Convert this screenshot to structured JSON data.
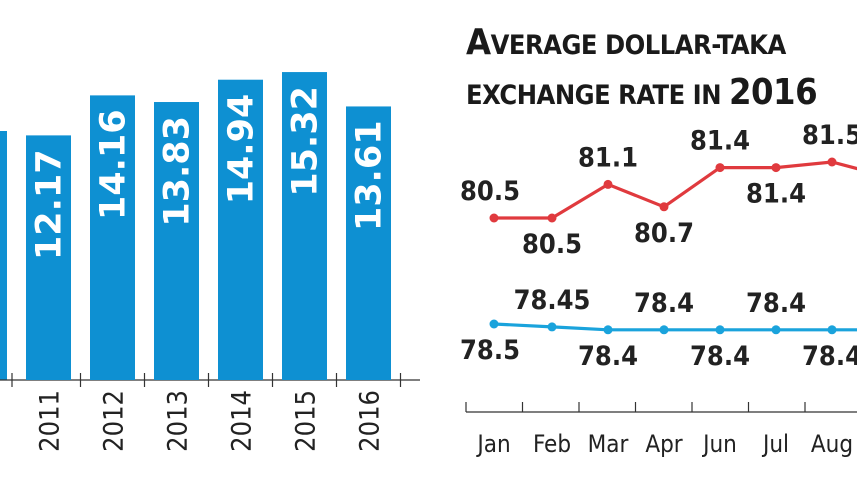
{
  "chart_data": [
    {
      "type": "bar",
      "categories": [
        "2011",
        "2012",
        "2013",
        "2014",
        "2015",
        "2016"
      ],
      "values": [
        12.17,
        14.16,
        13.83,
        14.94,
        15.32,
        13.61
      ],
      "labels": [
        "12.17",
        "14.16",
        "13.83",
        "14.94",
        "15.32",
        "13.61"
      ],
      "ylim": [
        0,
        17
      ],
      "color": "#0e90d2",
      "partial_left_bar": true
    },
    {
      "type": "line",
      "title_parts": [
        {
          "text": "A",
          "size": "big"
        },
        {
          "text": "VERAGE DOLLAR-TAKA",
          "size": "small"
        }
      ],
      "title_parts_2": [
        {
          "text": "EXCHANGE RATE IN ",
          "size": "small"
        },
        {
          "text": "2016",
          "size": "big"
        }
      ],
      "categories": [
        "Jan",
        "Feb",
        "Mar",
        "Apr",
        "Jun",
        "Jul",
        "Aug"
      ],
      "series": [
        {
          "color": "#e03a3e",
          "values": [
            80.5,
            80.5,
            81.1,
            80.7,
            81.4,
            81.4,
            81.5
          ],
          "labels": [
            "80.5",
            "80.5",
            "81.1",
            "80.7",
            "81.4",
            "81.4",
            "81.5"
          ],
          "label_pos": [
            "above",
            "below",
            "above",
            "below",
            "above",
            "below",
            "above"
          ]
        },
        {
          "color": "#1aa3dc",
          "values": [
            78.5,
            78.45,
            78.4,
            78.4,
            78.4,
            78.4,
            78.4
          ],
          "labels": [
            "78.5",
            "78.45",
            "78.4",
            "78.4",
            "78.4",
            "78.4",
            "78.4"
          ],
          "label_pos": [
            "below",
            "above",
            "below",
            "above",
            "below",
            "above",
            "below"
          ]
        }
      ]
    }
  ]
}
